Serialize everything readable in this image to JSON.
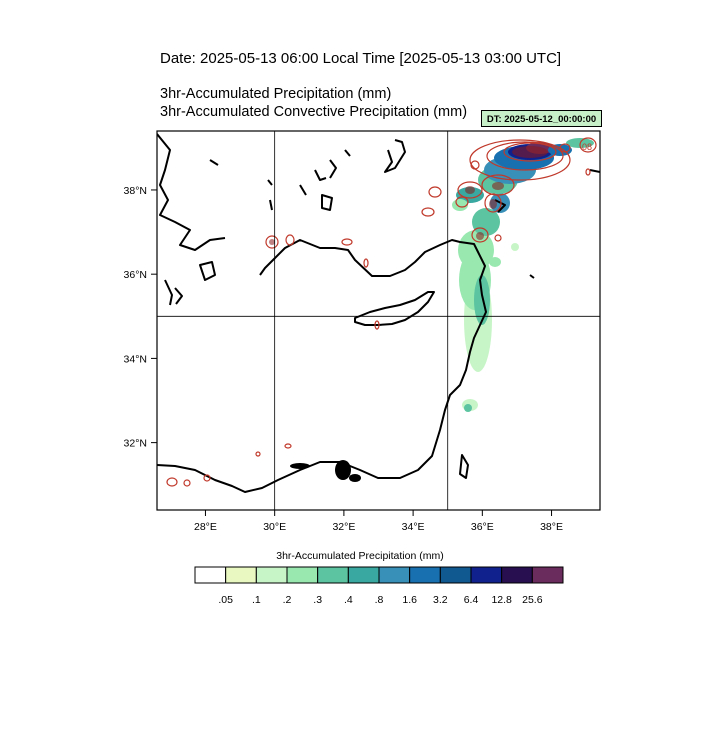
{
  "header": {
    "date_line": "Date: 2025-05-13  06:00 Local Time [2025-05-13  03:00 UTC]",
    "title_line_1": "3hr-Accumulated Precipitation   (mm)",
    "title_line_2": "3hr-Accumulated Convective Precipitation   (mm)",
    "dt_label": "DT: 2025-05-12_00:00:00"
  },
  "map": {
    "region": "Eastern Mediterranean",
    "lon_range": [
      26.6,
      39.4
    ],
    "lat_range": [
      30.4,
      39.4
    ],
    "lon_ticks": [
      {
        "value": 28,
        "label": "28°E"
      },
      {
        "value": 30,
        "label": "30°E"
      },
      {
        "value": 32,
        "label": "32°E"
      },
      {
        "value": 34,
        "label": "34°E"
      },
      {
        "value": 36,
        "label": "36°E"
      },
      {
        "value": 38,
        "label": "38°E"
      }
    ],
    "lat_ticks": [
      {
        "value": 32,
        "label": "32°N"
      },
      {
        "value": 34,
        "label": "34°N"
      },
      {
        "value": 36,
        "label": "36°N"
      },
      {
        "value": 38,
        "label": "38°N"
      }
    ],
    "grid_lines": {
      "lon": [
        30,
        35
      ],
      "lat": [
        35
      ]
    },
    "convective_label": "08"
  },
  "colorbar": {
    "title": "3hr-Accumulated Precipitation  (mm)",
    "colors": [
      "#ffffff",
      "#e8f8c0",
      "#c8f5c8",
      "#98e8b0",
      "#5cc4a0",
      "#38a8a0",
      "#3890b8",
      "#1870b0",
      "#105890",
      "#10208c",
      "#281050",
      "#6a2c5c"
    ],
    "labels": [
      ".05",
      ".1",
      ".2",
      ".3",
      ".4",
      ".8",
      "1.6",
      "3.2",
      "6.4",
      "12.8",
      "25.6"
    ]
  }
}
